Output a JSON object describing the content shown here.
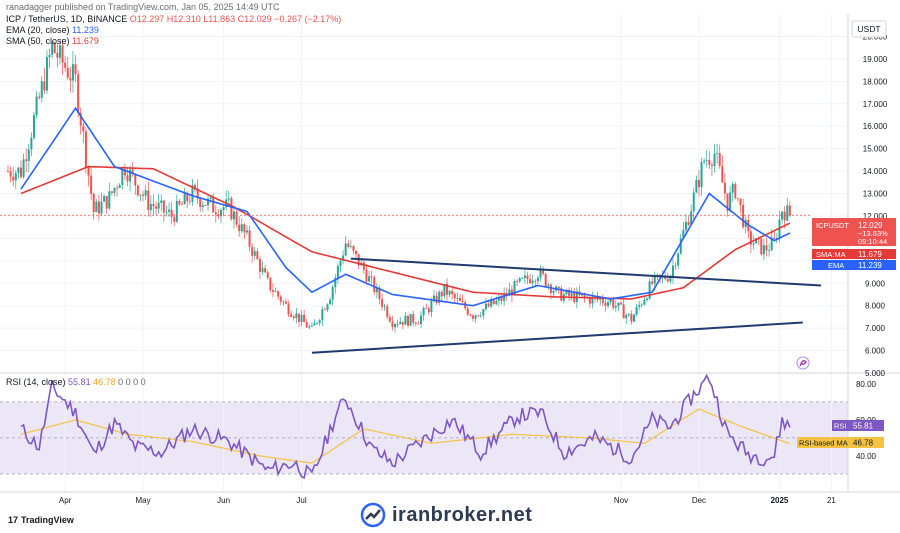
{
  "header": {
    "publisher": "ranadagger published on TradingView.com, Jan 05, 2025 14:49 UTC",
    "symbol_line": "ICP / TetherUS, 1D, BINANCE",
    "ohlc": "O12.297 H12.310 L11.863 C12.029 −0.267 (−2.17%)",
    "ema_line": "EMA (20, close)",
    "ema_value": "11.239",
    "sma_line": "SMA (50, close)",
    "sma_value": "11.679"
  },
  "price_axis": {
    "currency": "USDT",
    "ticks": [
      "20.000",
      "19.000",
      "18.000",
      "17.000",
      "16.000",
      "15.000",
      "14.000",
      "13.000",
      "12.000",
      "11.000",
      "10.000",
      "9.000",
      "8.000",
      "7.000",
      "6.000",
      "5.000"
    ]
  },
  "labels": {
    "last_symbol": "ICPUSDT",
    "last_price": "12.029",
    "last_change": "−13.63%",
    "countdown": "09:10:44",
    "sma_tag": "SMA:MA",
    "sma_tag_value": "11.679",
    "ema_tag": "EMA",
    "ema_tag_value": "11.239",
    "rsi_tag": "RSI",
    "rsi_tag_value": "55.81",
    "rsima_tag": "RSI-based MA",
    "rsima_tag_value": "46.78"
  },
  "rsi_panel": {
    "title": "RSI (14, close)",
    "rsi_value": "55.81",
    "ma_value": "46.78",
    "zeros": "0 0 0 0",
    "ticks": [
      "80.00",
      "60.00",
      "40.00"
    ]
  },
  "time_axis": [
    "Apr",
    "May",
    "Jun",
    "Jul",
    "Nov",
    "Dec",
    "2025",
    "21"
  ],
  "watermark": {
    "site": "iranbroker.net",
    "brand": "TradingView"
  },
  "colors": {
    "up": "#26a69a",
    "down": "#ef5350",
    "ema": "#2962ff",
    "sma": "#e53935",
    "rsi": "#7e57c2",
    "rsi_ma": "#f5c242",
    "trendline": "#1e3a6e"
  },
  "chart_data": {
    "type": "candlestick",
    "price_range": [
      5,
      21
    ],
    "rsi_range": [
      20,
      86
    ],
    "rsi_bands": [
      70,
      50,
      30
    ],
    "price_keypoints": [
      {
        "date": "2024-03-15",
        "close": 14.0
      },
      {
        "date": "2024-03-27",
        "close": 19.5
      },
      {
        "date": "2024-04-05",
        "close": 18.0
      },
      {
        "date": "2024-04-12",
        "close": 12.2
      },
      {
        "date": "2024-04-18",
        "close": 12.8
      },
      {
        "date": "2024-04-24",
        "close": 14.2
      },
      {
        "date": "2024-05-03",
        "close": 12.6
      },
      {
        "date": "2024-05-12",
        "close": 12.0
      },
      {
        "date": "2024-05-20",
        "close": 13.0
      },
      {
        "date": "2024-05-28",
        "close": 12.4
      },
      {
        "date": "2024-06-03",
        "close": 12.4
      },
      {
        "date": "2024-06-10",
        "close": 11.0
      },
      {
        "date": "2024-06-18",
        "close": 9.0
      },
      {
        "date": "2024-06-25",
        "close": 8.0
      },
      {
        "date": "2024-07-05",
        "close": 6.9
      },
      {
        "date": "2024-07-12",
        "close": 8.5
      },
      {
        "date": "2024-07-18",
        "close": 10.8
      },
      {
        "date": "2024-07-25",
        "close": 9.6
      },
      {
        "date": "2024-08-05",
        "close": 7.3
      },
      {
        "date": "2024-08-15",
        "close": 7.4
      },
      {
        "date": "2024-08-25",
        "close": 8.7
      },
      {
        "date": "2024-09-05",
        "close": 7.6
      },
      {
        "date": "2024-09-15",
        "close": 8.2
      },
      {
        "date": "2024-09-22",
        "close": 8.9
      },
      {
        "date": "2024-09-30",
        "close": 9.5
      },
      {
        "date": "2024-10-08",
        "close": 8.5
      },
      {
        "date": "2024-10-20",
        "close": 8.3
      },
      {
        "date": "2024-10-28",
        "close": 8.2
      },
      {
        "date": "2024-11-05",
        "close": 7.4
      },
      {
        "date": "2024-11-13",
        "close": 9.0
      },
      {
        "date": "2024-11-20",
        "close": 9.4
      },
      {
        "date": "2024-11-27",
        "close": 12.0
      },
      {
        "date": "2024-12-03",
        "close": 14.5
      },
      {
        "date": "2024-12-07",
        "close": 14.8
      },
      {
        "date": "2024-12-12",
        "close": 12.6
      },
      {
        "date": "2024-12-15",
        "close": 13.2
      },
      {
        "date": "2024-12-20",
        "close": 11.0
      },
      {
        "date": "2024-12-26",
        "close": 10.5
      },
      {
        "date": "2024-12-30",
        "close": 10.8
      },
      {
        "date": "2025-01-02",
        "close": 12.3
      },
      {
        "date": "2025-01-05",
        "close": 12.029
      }
    ],
    "ema_keypoints": [
      {
        "date": "2024-03-15",
        "value": 13.2
      },
      {
        "date": "2024-04-05",
        "value": 16.8
      },
      {
        "date": "2024-04-20",
        "value": 14.2
      },
      {
        "date": "2024-05-20",
        "value": 12.9
      },
      {
        "date": "2024-06-10",
        "value": 12.2
      },
      {
        "date": "2024-06-25",
        "value": 9.7
      },
      {
        "date": "2024-07-05",
        "value": 8.6
      },
      {
        "date": "2024-07-18",
        "value": 9.4
      },
      {
        "date": "2024-08-05",
        "value": 8.5
      },
      {
        "date": "2024-09-05",
        "value": 8.0
      },
      {
        "date": "2024-09-30",
        "value": 8.9
      },
      {
        "date": "2024-10-28",
        "value": 8.3
      },
      {
        "date": "2024-11-13",
        "value": 8.6
      },
      {
        "date": "2024-12-05",
        "value": 13.0
      },
      {
        "date": "2024-12-20",
        "value": 11.6
      },
      {
        "date": "2024-12-30",
        "value": 10.9
      },
      {
        "date": "2025-01-05",
        "value": 11.239
      }
    ],
    "sma_keypoints": [
      {
        "date": "2024-03-15",
        "value": 13.0
      },
      {
        "date": "2024-04-10",
        "value": 14.2
      },
      {
        "date": "2024-05-05",
        "value": 14.1
      },
      {
        "date": "2024-06-05",
        "value": 12.4
      },
      {
        "date": "2024-07-05",
        "value": 10.4
      },
      {
        "date": "2024-08-05",
        "value": 9.5
      },
      {
        "date": "2024-09-05",
        "value": 8.6
      },
      {
        "date": "2024-10-05",
        "value": 8.4
      },
      {
        "date": "2024-11-05",
        "value": 8.3
      },
      {
        "date": "2024-11-25",
        "value": 8.8
      },
      {
        "date": "2024-12-15",
        "value": 10.5
      },
      {
        "date": "2025-01-05",
        "value": 11.679
      }
    ],
    "rsi_keypoints": [
      {
        "date": "2024-03-15",
        "value": 55
      },
      {
        "date": "2024-03-22",
        "value": 45
      },
      {
        "date": "2024-03-27",
        "value": 78
      },
      {
        "date": "2024-04-05",
        "value": 64
      },
      {
        "date": "2024-04-12",
        "value": 41
      },
      {
        "date": "2024-04-20",
        "value": 58
      },
      {
        "date": "2024-04-28",
        "value": 45
      },
      {
        "date": "2024-05-08",
        "value": 42
      },
      {
        "date": "2024-05-20",
        "value": 55
      },
      {
        "date": "2024-06-03",
        "value": 48
      },
      {
        "date": "2024-06-18",
        "value": 32
      },
      {
        "date": "2024-06-28",
        "value": 36
      },
      {
        "date": "2024-07-05",
        "value": 28
      },
      {
        "date": "2024-07-14",
        "value": 62
      },
      {
        "date": "2024-07-18",
        "value": 72
      },
      {
        "date": "2024-07-28",
        "value": 44
      },
      {
        "date": "2024-08-05",
        "value": 36
      },
      {
        "date": "2024-08-20",
        "value": 52
      },
      {
        "date": "2024-08-28",
        "value": 60
      },
      {
        "date": "2024-09-08",
        "value": 42
      },
      {
        "date": "2024-09-22",
        "value": 62
      },
      {
        "date": "2024-10-01",
        "value": 64
      },
      {
        "date": "2024-10-10",
        "value": 42
      },
      {
        "date": "2024-10-22",
        "value": 50
      },
      {
        "date": "2024-11-05",
        "value": 39
      },
      {
        "date": "2024-11-13",
        "value": 60
      },
      {
        "date": "2024-11-20",
        "value": 56
      },
      {
        "date": "2024-11-28",
        "value": 72
      },
      {
        "date": "2024-12-05",
        "value": 84
      },
      {
        "date": "2024-12-12",
        "value": 52
      },
      {
        "date": "2024-12-20",
        "value": 41
      },
      {
        "date": "2024-12-26",
        "value": 39
      },
      {
        "date": "2024-12-30",
        "value": 40
      },
      {
        "date": "2025-01-02",
        "value": 60
      },
      {
        "date": "2025-01-05",
        "value": 55.81
      }
    ],
    "rsi_ma_keypoints": [
      {
        "date": "2024-03-15",
        "value": 52
      },
      {
        "date": "2024-04-05",
        "value": 60
      },
      {
        "date": "2024-04-25",
        "value": 52
      },
      {
        "date": "2024-05-20",
        "value": 48
      },
      {
        "date": "2024-06-15",
        "value": 40
      },
      {
        "date": "2024-07-05",
        "value": 36
      },
      {
        "date": "2024-07-25",
        "value": 55
      },
      {
        "date": "2024-08-20",
        "value": 47
      },
      {
        "date": "2024-09-20",
        "value": 52
      },
      {
        "date": "2024-10-20",
        "value": 50
      },
      {
        "date": "2024-11-10",
        "value": 47
      },
      {
        "date": "2024-12-01",
        "value": 66
      },
      {
        "date": "2024-12-18",
        "value": 56
      },
      {
        "date": "2025-01-05",
        "value": 46.78
      }
    ],
    "trendlines": [
      {
        "name": "upper",
        "from": {
          "date": "2024-07-20",
          "price": 10.1
        },
        "to": {
          "date": "2025-01-17",
          "price": 8.9
        }
      },
      {
        "name": "lower",
        "from": {
          "date": "2024-07-05",
          "price": 5.9
        },
        "to": {
          "date": "2025-01-10",
          "price": 7.25
        }
      }
    ],
    "first_date": "2024-03-10",
    "last_candle_date": "2025-01-05",
    "time_ticks": [
      {
        "label": "Apr",
        "date": "2024-04-01"
      },
      {
        "label": "May",
        "date": "2024-05-01"
      },
      {
        "label": "Jun",
        "date": "2024-06-01"
      },
      {
        "label": "Jul",
        "date": "2024-07-01"
      },
      {
        "label": "Nov",
        "date": "2024-11-01"
      },
      {
        "label": "Dec",
        "date": "2024-12-01"
      },
      {
        "label": "2025",
        "date": "2025-01-01"
      },
      {
        "label": "21",
        "date": "2025-01-21"
      }
    ]
  }
}
